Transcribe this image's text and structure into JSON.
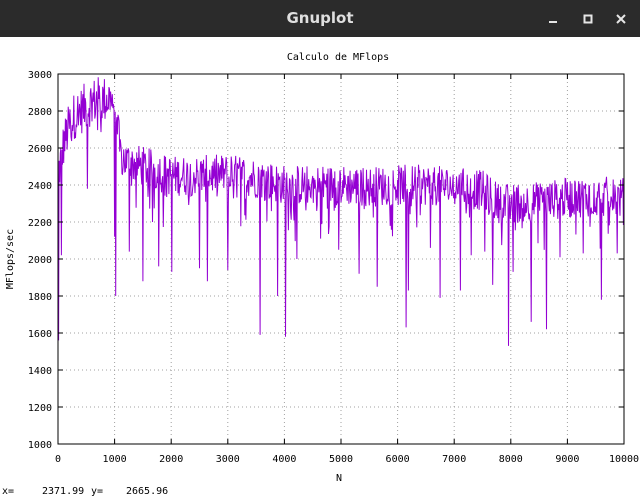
{
  "window": {
    "title": "Gnuplot",
    "controls": [
      "minimize",
      "maximize",
      "close"
    ]
  },
  "chart_data": {
    "type": "line",
    "title": "Calculo de MFlops",
    "xlabel": "N",
    "ylabel": "MFlops/sec",
    "xlim": [
      0,
      10000
    ],
    "ylim": [
      1000,
      3000
    ],
    "xticks": [
      0,
      1000,
      2000,
      3000,
      4000,
      5000,
      6000,
      7000,
      8000,
      9000,
      10000
    ],
    "yticks": [
      1000,
      1200,
      1400,
      1600,
      1800,
      2000,
      2200,
      2400,
      2600,
      2800,
      3000
    ],
    "grid": true,
    "line_color": "#9400d3",
    "series_envelope": {
      "x": [
        0,
        100,
        200,
        300,
        400,
        500,
        600,
        700,
        800,
        900,
        1000,
        1100,
        1200,
        1500,
        2000,
        2500,
        3000,
        3500,
        4000,
        4500,
        5000,
        5500,
        6000,
        6500,
        7000,
        7500,
        7800,
        8000,
        8500,
        9000,
        9500,
        9990
      ],
      "mid": [
        2450,
        2620,
        2720,
        2780,
        2800,
        2830,
        2850,
        2860,
        2860,
        2870,
        2850,
        2560,
        2530,
        2500,
        2450,
        2450,
        2460,
        2440,
        2400,
        2400,
        2400,
        2390,
        2400,
        2400,
        2390,
        2370,
        2300,
        2300,
        2310,
        2330,
        2340,
        2330
      ]
    },
    "dips": [
      [
        5,
        1560
      ],
      [
        60,
        2020
      ],
      [
        520,
        2380
      ],
      [
        1000,
        2120
      ],
      [
        1020,
        1800
      ],
      [
        1260,
        2040
      ],
      [
        1500,
        1880
      ],
      [
        1780,
        1960
      ],
      [
        2010,
        1930
      ],
      [
        2500,
        1950
      ],
      [
        2640,
        1880
      ],
      [
        3000,
        1940
      ],
      [
        3570,
        1590
      ],
      [
        3880,
        1800
      ],
      [
        4020,
        1580
      ],
      [
        4220,
        2000
      ],
      [
        4640,
        2110
      ],
      [
        4960,
        2050
      ],
      [
        5320,
        1920
      ],
      [
        5640,
        1850
      ],
      [
        6150,
        1630
      ],
      [
        6190,
        1830
      ],
      [
        6580,
        2060
      ],
      [
        6750,
        1790
      ],
      [
        7110,
        1830
      ],
      [
        7300,
        2020
      ],
      [
        7540,
        2040
      ],
      [
        7680,
        1860
      ],
      [
        7960,
        1530
      ],
      [
        8040,
        1930
      ],
      [
        8360,
        1660
      ],
      [
        8630,
        1620
      ],
      [
        8870,
        2010
      ],
      [
        9280,
        2030
      ],
      [
        9600,
        1780
      ],
      [
        9880,
        2030
      ]
    ]
  },
  "status": {
    "x_label": "x=",
    "x_value": "2371.99",
    "y_label": "y=",
    "y_value": "2665.96"
  }
}
